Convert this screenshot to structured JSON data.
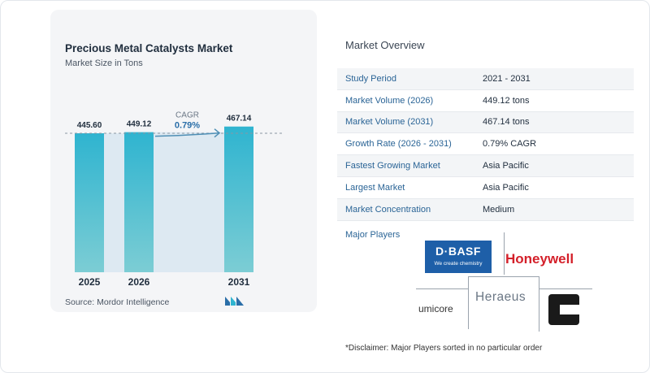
{
  "chart_card": {
    "title": "Precious Metal Catalysts Market",
    "subtitle": "Market Size in Tons",
    "source": "Source:  Mordor Intelligence"
  },
  "chart_data": {
    "type": "bar",
    "title": "Precious Metal Catalysts Market",
    "subtitle": "Market Size in Tons",
    "categories": [
      "2025",
      "2026",
      "2031"
    ],
    "values": [
      445.6,
      449.12,
      467.14
    ],
    "value_labels": [
      "445.60",
      "449.12",
      "467.14"
    ],
    "cagr_label": "CAGR",
    "cagr_value": "0.79%",
    "xlabel": "",
    "ylabel": "",
    "grid": false,
    "colors": {
      "bar_top": "#2fb4d0",
      "bar_bottom": "#7ccdd4",
      "band": "#dde9f2",
      "arrow": "#4f8fb5",
      "cagr_label": "#6b7785",
      "cagr_value": "#2a6ea8"
    }
  },
  "overview": {
    "title": "Market Overview",
    "rows": [
      {
        "label": "Study Period",
        "value": "2021 - 2031"
      },
      {
        "label": "Market Volume (2026)",
        "value": "449.12 tons"
      },
      {
        "label": "Market Volume (2031)",
        "value": "467.14 tons"
      },
      {
        "label": "Growth Rate (2026 - 2031)",
        "value": "0.79% CAGR"
      },
      {
        "label": "Fastest Growing Market",
        "value": "Asia Pacific"
      },
      {
        "label": "Largest Market",
        "value": "Asia Pacific"
      },
      {
        "label": "Market Concentration",
        "value": "Medium"
      }
    ]
  },
  "players": {
    "label": "Major Players",
    "basf_name": "BASF",
    "basf_prefix": "D·",
    "basf_tagline": "We create chemistry",
    "honeywell": "Honeywell",
    "heraeus": "Heraeus",
    "umicore": "umicore",
    "basf_color": "#1e5fa8",
    "honeywell_color": "#d4202a",
    "dark_logo_icon": "black-square-logo-icon"
  },
  "disclaimer": "*Disclaimer: Major Players sorted in no particular order"
}
